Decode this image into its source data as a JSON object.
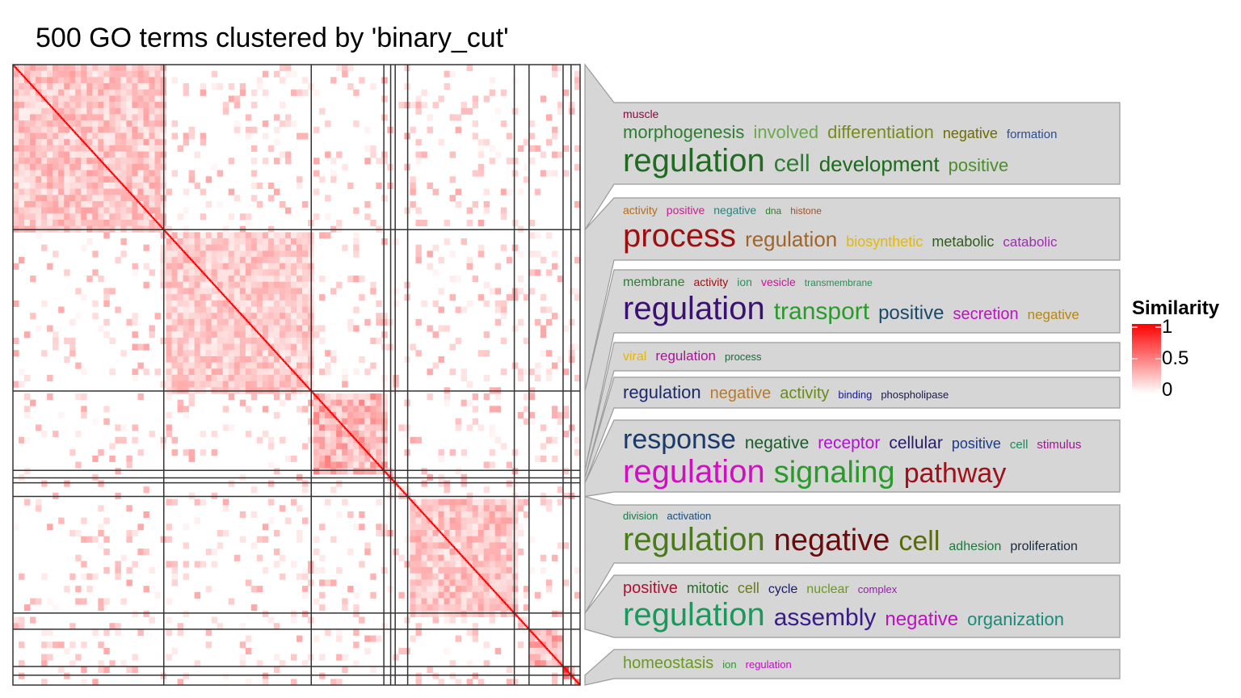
{
  "title": "500 GO terms clustered by 'binary_cut'",
  "legend": {
    "title": "Similarity",
    "ticks": [
      {
        "value": 1,
        "label": "1"
      },
      {
        "value": 0.5,
        "label": "0.5"
      },
      {
        "value": 0,
        "label": "0"
      }
    ],
    "colors": {
      "low": "#ffffff",
      "high": "#ff0000"
    }
  },
  "chart_data": {
    "type": "heatmap",
    "n_terms": 500,
    "value_range": [
      0,
      1
    ],
    "clusters": [
      {
        "start": 0,
        "size": 133,
        "background_similarity": 0.22,
        "word_lines": [
          [
            {
              "text": "muscle",
              "size": 14,
              "color": "#8b0a3e"
            }
          ],
          [
            {
              "text": "morphogenesis",
              "size": 22,
              "color": "#2e7d32"
            },
            {
              "text": "involved",
              "size": 22,
              "color": "#6aa84f"
            },
            {
              "text": "differentiation",
              "size": 22,
              "color": "#7a8a1a"
            },
            {
              "text": "negative",
              "size": 18,
              "color": "#6b6b00"
            },
            {
              "text": "formation",
              "size": 15,
              "color": "#2a4d8f"
            }
          ],
          [
            {
              "text": "regulation",
              "size": 40,
              "color": "#1f6b1f"
            },
            {
              "text": "cell",
              "size": 30,
              "color": "#2e7d32"
            },
            {
              "text": "development",
              "size": 26,
              "color": "#1b6b1b"
            },
            {
              "text": "positive",
              "size": 22,
              "color": "#4a8f2a"
            }
          ]
        ]
      },
      {
        "start": 133,
        "size": 130,
        "background_similarity": 0.2,
        "word_lines": [
          [
            {
              "text": "activity",
              "size": 14,
              "color": "#b86b1a"
            },
            {
              "text": "positive",
              "size": 14,
              "color": "#c0238f"
            },
            {
              "text": "negative",
              "size": 14,
              "color": "#2a8080"
            },
            {
              "text": "dna",
              "size": 12,
              "color": "#2e7d32"
            },
            {
              "text": "histone",
              "size": 12,
              "color": "#a0522d"
            }
          ],
          [
            {
              "text": "process",
              "size": 40,
              "color": "#9b1010"
            },
            {
              "text": "regulation",
              "size": 26,
              "color": "#a0642a"
            },
            {
              "text": "biosynthetic",
              "size": 18,
              "color": "#e6b800"
            },
            {
              "text": "metabolic",
              "size": 18,
              "color": "#2e5d1a"
            },
            {
              "text": "catabolic",
              "size": 17,
              "color": "#9b2fae"
            }
          ]
        ]
      },
      {
        "start": 263,
        "size": 64,
        "background_similarity": 0.3,
        "word_lines": [
          [
            {
              "text": "membrane",
              "size": 16,
              "color": "#2e7d32"
            },
            {
              "text": "activity",
              "size": 14,
              "color": "#a01010"
            },
            {
              "text": "ion",
              "size": 14,
              "color": "#1a9a5a"
            },
            {
              "text": "vesicle",
              "size": 14,
              "color": "#d010a0"
            },
            {
              "text": "transmembrane",
              "size": 12,
              "color": "#2e8b57"
            }
          ],
          [
            {
              "text": "regulation",
              "size": 40,
              "color": "#3a1070"
            },
            {
              "text": "transport",
              "size": 30,
              "color": "#2a9a2a"
            },
            {
              "text": "positive",
              "size": 24,
              "color": "#1a4a6a"
            },
            {
              "text": "secretion",
              "size": 20,
              "color": "#c010c0"
            },
            {
              "text": "negative",
              "size": 17,
              "color": "#b8860b"
            }
          ]
        ]
      },
      {
        "start": 327,
        "size": 6,
        "background_similarity": 0.2,
        "word_lines": [
          [
            {
              "text": "viral",
              "size": 16,
              "color": "#e6b800"
            },
            {
              "text": "regulation",
              "size": 17,
              "color": "#b0109a"
            },
            {
              "text": "process",
              "size": 13,
              "color": "#1a6a3a"
            }
          ]
        ]
      },
      {
        "start": 333,
        "size": 4,
        "background_similarity": 0.2,
        "word_lines": [
          [
            {
              "text": "regulation",
              "size": 22,
              "color": "#1a2a6a"
            },
            {
              "text": "negative",
              "size": 20,
              "color": "#b87a2a"
            },
            {
              "text": "activity",
              "size": 20,
              "color": "#6a8a1a"
            },
            {
              "text": "binding",
              "size": 13,
              "color": "#1a1a8a"
            },
            {
              "text": "phospholipase",
              "size": 13,
              "color": "#1a1a4a"
            }
          ]
        ]
      },
      {
        "start": 337,
        "size": 11,
        "background_similarity": 0.15,
        "word_lines": [
          [
            {
              "text": "response",
              "size": 34,
              "color": "#1a3a6a"
            },
            {
              "text": "negative",
              "size": 21,
              "color": "#1a5a2a"
            },
            {
              "text": "receptor",
              "size": 21,
              "color": "#b010d0"
            },
            {
              "text": "cellular",
              "size": 21,
              "color": "#2a1a6a"
            },
            {
              "text": "positive",
              "size": 18,
              "color": "#1a3a8a"
            },
            {
              "text": "cell",
              "size": 15,
              "color": "#1a8a5a"
            },
            {
              "text": "stimulus",
              "size": 15,
              "color": "#9a1a8a"
            }
          ],
          [
            {
              "text": "regulation",
              "size": 40,
              "color": "#d010c0"
            },
            {
              "text": "signaling",
              "size": 38,
              "color": "#2a9a2a"
            },
            {
              "text": "pathway",
              "size": 34,
              "color": "#a01018"
            }
          ]
        ]
      },
      {
        "start": 348,
        "size": 94,
        "background_similarity": 0.22,
        "word_lines": [
          [
            {
              "text": "division",
              "size": 13,
              "color": "#1a7a4a"
            },
            {
              "text": "activation",
              "size": 13,
              "color": "#1a4a7a"
            }
          ],
          [
            {
              "text": "regulation",
              "size": 40,
              "color": "#4a7a1a"
            },
            {
              "text": "negative",
              "size": 38,
              "color": "#6a0a0a"
            },
            {
              "text": "cell",
              "size": 34,
              "color": "#5a6a0a"
            },
            {
              "text": "adhesion",
              "size": 16,
              "color": "#1a7a3a"
            },
            {
              "text": "proliferation",
              "size": 16,
              "color": "#1a2a3a"
            }
          ]
        ]
      },
      {
        "start": 442,
        "size": 13,
        "background_similarity": 0.25,
        "word_lines": [
          [
            {
              "text": "positive",
              "size": 20,
              "color": "#b01030"
            },
            {
              "text": "mitotic",
              "size": 18,
              "color": "#2a6a2a"
            },
            {
              "text": "cell",
              "size": 18,
              "color": "#6a7a1a"
            },
            {
              "text": "cycle",
              "size": 16,
              "color": "#1a1a6a"
            },
            {
              "text": "nuclear",
              "size": 16,
              "color": "#6a9a1a"
            },
            {
              "text": "complex",
              "size": 13,
              "color": "#9a1ab0"
            }
          ],
          [
            {
              "text": "regulation",
              "size": 40,
              "color": "#1a9a5a"
            },
            {
              "text": "assembly",
              "size": 30,
              "color": "#3a1a8a"
            },
            {
              "text": "negative",
              "size": 24,
              "color": "#c010c0"
            },
            {
              "text": "organization",
              "size": 22,
              "color": "#1a8a7a"
            }
          ]
        ]
      },
      {
        "start": 455,
        "size": 30,
        "background_similarity": 0.28,
        "word_lines": []
      },
      {
        "start": 485,
        "size": 7,
        "background_similarity": 0.5,
        "word_lines": []
      },
      {
        "start": 492,
        "size": 8,
        "background_similarity": 0.4,
        "word_lines": [
          [
            {
              "text": "homeostasis",
              "size": 20,
              "color": "#6a9a1a"
            },
            {
              "text": "ion",
              "size": 13,
              "color": "#2a9a2a"
            },
            {
              "text": "regulation",
              "size": 13,
              "color": "#c010c0"
            }
          ]
        ]
      }
    ]
  }
}
